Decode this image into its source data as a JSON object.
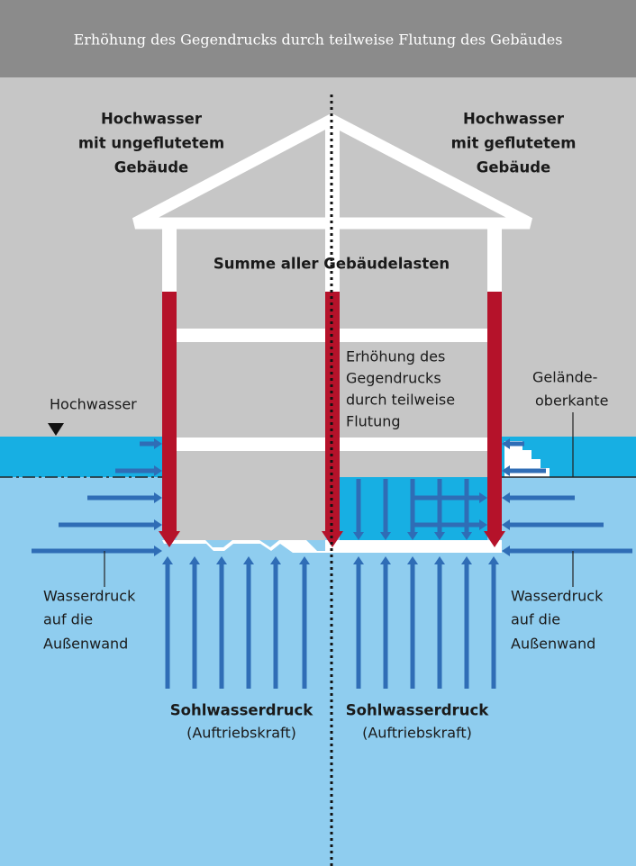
{
  "header": {
    "title": "Erhöhung des Gegendrucks durch teilweise Flutung des Gebäudes"
  },
  "labels": {
    "left_heading": [
      "Hochwasser",
      "mit ungeflutetem",
      "Gebäude"
    ],
    "right_heading": [
      "Hochwasser",
      "mit geflutetem",
      "Gebäude"
    ],
    "loads": "Summe aller Gebäudelasten",
    "counter_pressure": [
      "Erhöhung des",
      "Gegendrucks",
      "durch teilweise",
      "Flutung"
    ],
    "flood_level": "Hochwasser",
    "ground_level": [
      "Gelände-",
      "oberkante"
    ],
    "wall_pressure_left": [
      "Wasserdruck",
      "auf die",
      "Außenwand"
    ],
    "wall_pressure_right": [
      "Wasserdruck",
      "auf die",
      "Außenwand"
    ],
    "uplift_left": {
      "name": "Sohlwasserdruck",
      "note": "(Auftriebskraft)"
    },
    "uplift_right": {
      "name": "Sohlwasserdruck",
      "note": "(Auftriebskraft)"
    }
  }
}
